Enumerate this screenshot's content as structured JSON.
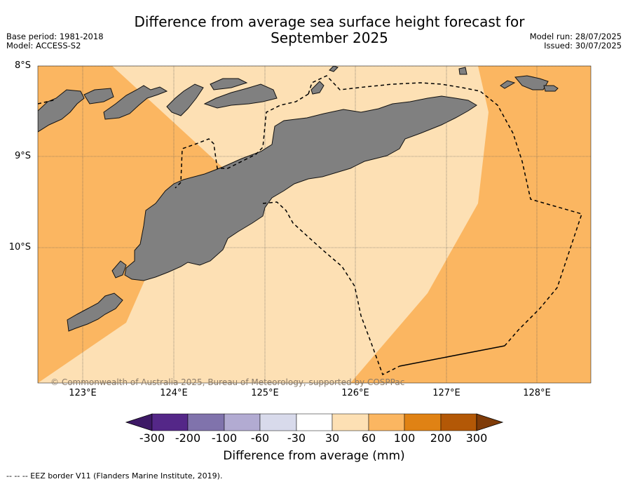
{
  "title": {
    "line1": "Difference from average sea surface height forecast for",
    "line2": "September 2025"
  },
  "meta": {
    "base_period": "Base period: 1981-2018",
    "model": "Model: ACCESS-S2",
    "model_run": "Model run: 28/07/2025",
    "issued": "Issued: 30/07/2025"
  },
  "map": {
    "lat_labels": [
      "8°S",
      "9°S",
      "10°S"
    ],
    "lon_labels": [
      "123°E",
      "124°E",
      "125°E",
      "126°E",
      "127°E",
      "128°E"
    ],
    "copyright": "© Commonwealth of Australia 2025, Bureau of Meteorology, supported by COSPPac",
    "colors": {
      "light_positive": "#fde0b4",
      "mid_positive": "#fbb661",
      "land": "#808080",
      "eez_border": "#000000"
    }
  },
  "colorbar": {
    "ticks": [
      "-300",
      "-200",
      "-100",
      "-60",
      "-30",
      "30",
      "60",
      "100",
      "200",
      "300"
    ],
    "colors": [
      "#3d1966",
      "#542788",
      "#8073ac",
      "#b2abd2",
      "#d8daeb",
      "#ffffff",
      "#fde0b4",
      "#fbb661",
      "#e08214",
      "#b35806",
      "#7f3b08"
    ],
    "label": "Difference from average (mm)"
  },
  "footnote": "--  --  -- EEZ border V11 (Flanders Marine Institute, 2019)."
}
